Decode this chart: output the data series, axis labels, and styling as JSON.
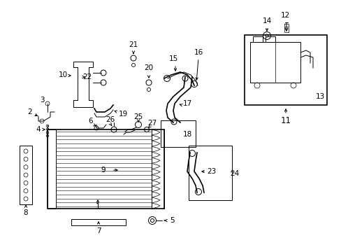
{
  "bg_color": "#ffffff",
  "line_color": "#000000",
  "text_color": "#000000",
  "fig_width": 4.89,
  "fig_height": 3.6,
  "dpi": 100,
  "lw_thin": 0.7,
  "lw_med": 1.2,
  "lw_thick": 2.0,
  "fs_label": 7.5
}
